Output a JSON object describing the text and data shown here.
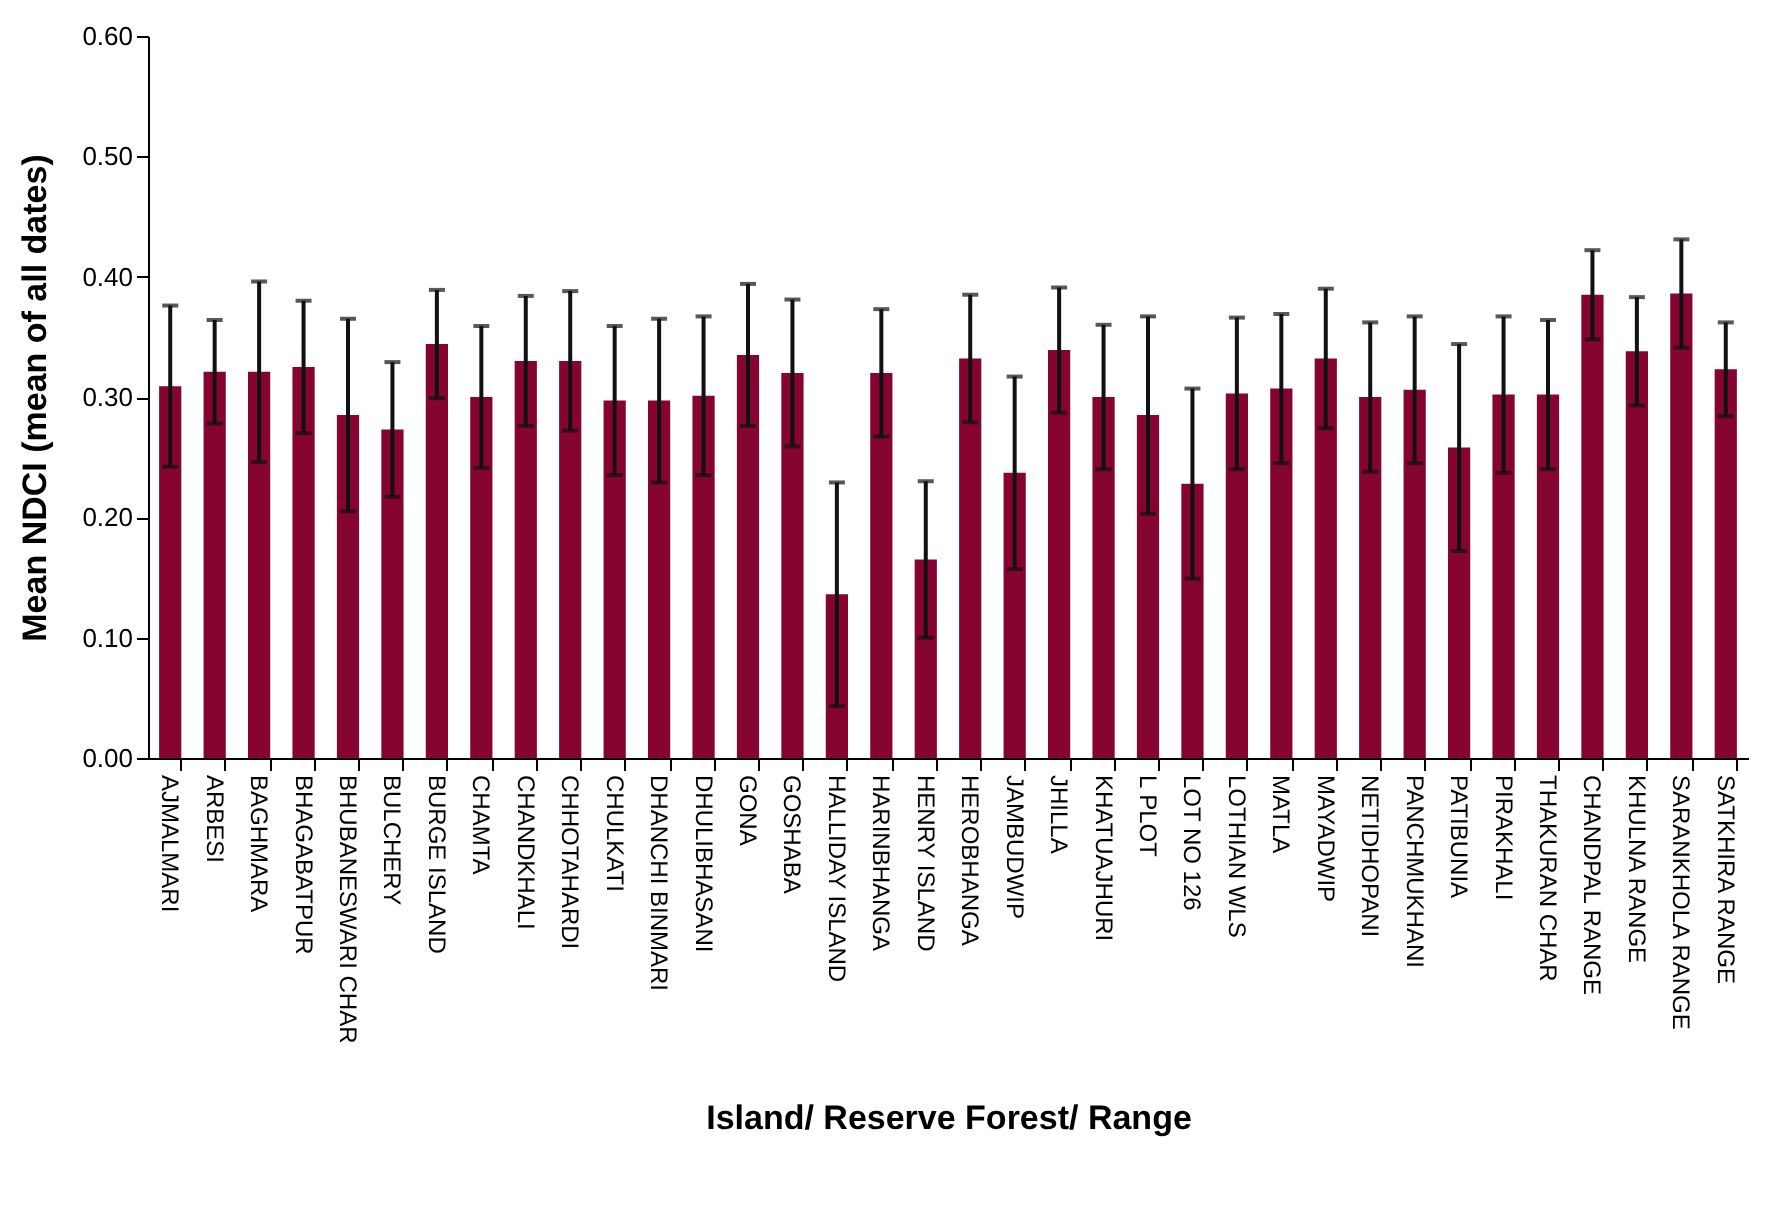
{
  "chart_data": {
    "type": "bar",
    "xlabel": "Island/ Reserve Forest/ Range",
    "ylabel": "Mean NDCI (mean of all dates)",
    "categories": [
      "AJMALMARI",
      "ARBESI",
      "BAGHMARA",
      "BHAGABATPUR",
      "BHUBANESWARI CHAR",
      "BULCHERY",
      "BURGE ISLAND",
      "CHAMTA",
      "CHANDKHALI",
      "CHHOTAHARDI",
      "CHULKATI",
      "DHANCHI BINMARI",
      "DHULIBHASANI",
      "GONA",
      "GOSHABA",
      "HALLIDAY ISLAND",
      "HARINBHANGA",
      "HENRY ISLAND",
      "HEROBHANGA",
      "JAMBUDWIP",
      "JHILLA",
      "KHATUAJHURI",
      "L PLOT",
      "LOT NO 126",
      "LOTHIAN WLS",
      "MATLA",
      "MAYADWIP",
      "NETIDHOPANI",
      "PANCHMUKHANI",
      "PATIBUNIA",
      "PIRAKHALI",
      "THAKURAN CHAR",
      "CHANDPAL RANGE",
      "KHULNA RANGE",
      "SARANKHOLA RANGE",
      "SATKHIRA RANGE"
    ],
    "values": [
      0.309,
      0.321,
      0.321,
      0.325,
      0.285,
      0.273,
      0.344,
      0.3,
      0.33,
      0.33,
      0.297,
      0.297,
      0.301,
      0.335,
      0.32,
      0.136,
      0.32,
      0.165,
      0.332,
      0.237,
      0.339,
      0.3,
      0.285,
      0.228,
      0.303,
      0.307,
      0.332,
      0.3,
      0.306,
      0.258,
      0.302,
      0.302,
      0.385,
      0.338,
      0.386,
      0.323
    ],
    "errors": [
      0.067,
      0.043,
      0.075,
      0.055,
      0.08,
      0.056,
      0.045,
      0.059,
      0.054,
      0.058,
      0.062,
      0.068,
      0.066,
      0.059,
      0.061,
      0.093,
      0.053,
      0.065,
      0.053,
      0.08,
      0.052,
      0.06,
      0.082,
      0.079,
      0.063,
      0.062,
      0.058,
      0.062,
      0.061,
      0.086,
      0.065,
      0.062,
      0.037,
      0.045,
      0.045,
      0.039
    ],
    "color": "#850430",
    "ylim": [
      0,
      0.6
    ],
    "yticks": [
      {
        "value": 0,
        "label": "0.00"
      },
      {
        "value": 0.1,
        "label": "0.10"
      },
      {
        "value": 0.2,
        "label": "0.20"
      },
      {
        "value": 0.3,
        "label": "0.30"
      },
      {
        "value": 0.4,
        "label": "0.40"
      },
      {
        "value": 0.5,
        "label": "0.50"
      },
      {
        "value": 0.6,
        "label": "0.60"
      }
    ],
    "grid": false
  }
}
